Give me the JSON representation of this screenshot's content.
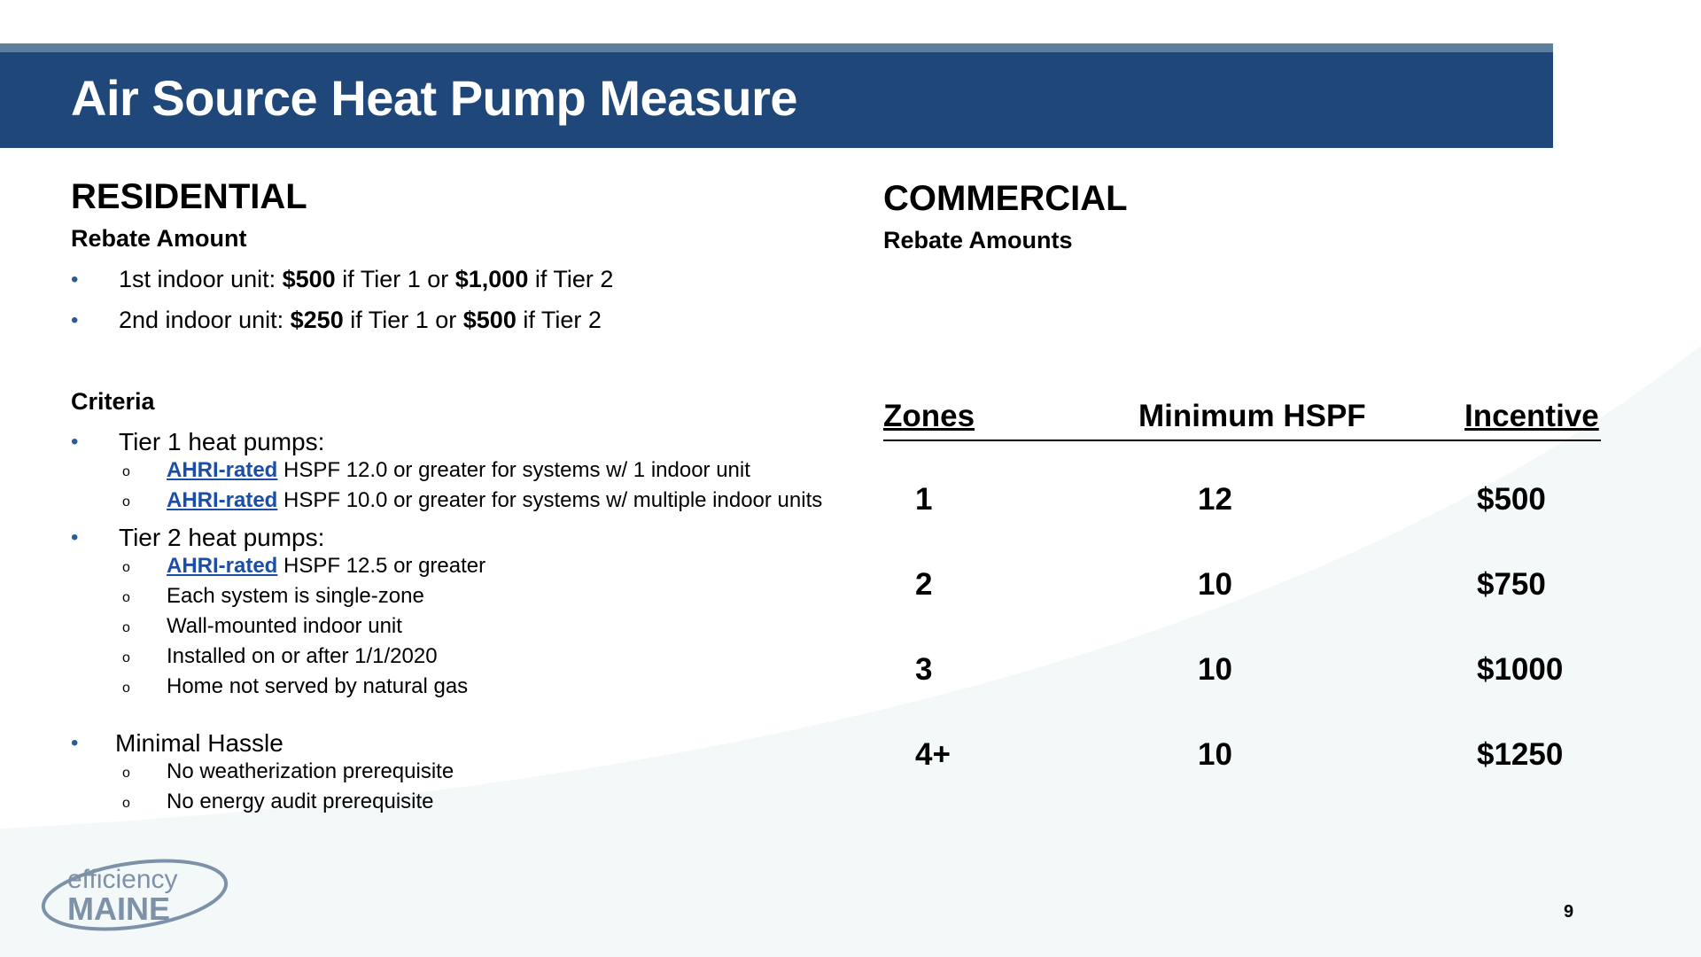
{
  "title": "Air Source Heat Pump Measure",
  "residential": {
    "heading": "RESIDENTIAL",
    "rebate_heading": "Rebate Amount",
    "rebate_items": [
      {
        "prefix": "1st indoor unit: ",
        "amt1": "$500",
        "mid": " if Tier 1 or ",
        "amt2": "$1,000",
        "suffix": " if Tier 2"
      },
      {
        "prefix": "2nd indoor unit: ",
        "amt1": "$250",
        "mid": " if Tier 1 or ",
        "amt2": "$500",
        "suffix": " if Tier 2"
      }
    ],
    "criteria_heading": "Criteria",
    "tier1": {
      "label": "Tier 1 heat pumps:",
      "items": [
        {
          "link": "AHRI-rated",
          "text": " HSPF 12.0 or greater for systems w/ 1 indoor unit"
        },
        {
          "link": "AHRI-rated",
          "text": " HSPF 10.0 or greater for systems w/ multiple indoor units"
        }
      ]
    },
    "tier2": {
      "label": "Tier 2 heat pumps:",
      "link_item": {
        "link": "AHRI-rated",
        "text": " HSPF 12.5 or greater"
      },
      "items": [
        "Each system is single-zone",
        "Wall-mounted indoor unit",
        "Installed on or after 1/1/2020",
        "Home not served by natural gas"
      ]
    },
    "hassle": {
      "label": "Minimal Hassle",
      "items": [
        "No weatherization prerequisite",
        "No energy audit prerequisite"
      ]
    }
  },
  "commercial": {
    "heading": "COMMERCIAL",
    "rebate_heading": "Rebate Amounts",
    "table": {
      "headers": {
        "zones": "Zones",
        "hspf": "Minimum HSPF",
        "incentive": "Incentive"
      },
      "rows": [
        {
          "zones": "1",
          "hspf": "12",
          "incentive": "$500"
        },
        {
          "zones": "2",
          "hspf": "10",
          "incentive": "$750"
        },
        {
          "zones": "3",
          "hspf": "10",
          "incentive": "$1000"
        },
        {
          "zones": "4+",
          "hspf": "10",
          "incentive": "$1250"
        }
      ]
    }
  },
  "logo": {
    "line1": "efficiency",
    "line2": "MAINE"
  },
  "page_number": "9",
  "colors": {
    "title_bar": "#1f477a",
    "title_bar_accent": "#5b7f9c",
    "bullet": "#2d5a9a",
    "link": "#1a4ea8",
    "logo": "#7d92a8"
  }
}
